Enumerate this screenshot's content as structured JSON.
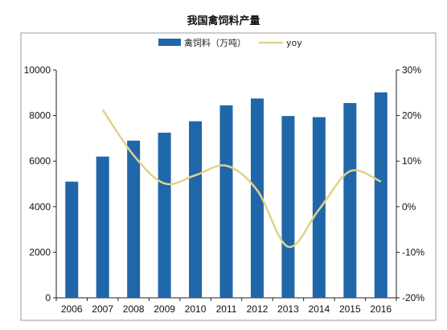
{
  "chart_data": {
    "type": "bar",
    "title": "我国禽饲料产量",
    "categories": [
      "2006",
      "2007",
      "2008",
      "2009",
      "2010",
      "2011",
      "2012",
      "2013",
      "2014",
      "2015",
      "2016"
    ],
    "series": [
      {
        "name": "禽饲料（万吨）",
        "type": "bar",
        "axis": "left",
        "color": "#1f67a8",
        "values": [
          5100,
          6200,
          6900,
          7250,
          7750,
          8450,
          8750,
          7980,
          7930,
          8550,
          9020
        ]
      },
      {
        "name": "yoy",
        "type": "line",
        "axis": "right",
        "color": "#e2d18a",
        "values": [
          null,
          21.3,
          11.3,
          5.1,
          6.9,
          9.0,
          3.6,
          -8.8,
          -0.6,
          7.8,
          5.5
        ]
      }
    ],
    "y_left": {
      "min": 0,
      "max": 10000,
      "ticks": [
        "0",
        "2000",
        "4000",
        "6000",
        "8000",
        "10000"
      ]
    },
    "y_right": {
      "min": -20,
      "max": 30,
      "ticks": [
        "-20%",
        "-10%",
        "0%",
        "10%",
        "20%",
        "30%"
      ]
    },
    "xlabel": "",
    "ylabel": "",
    "legend_position": "top",
    "grid": false
  }
}
